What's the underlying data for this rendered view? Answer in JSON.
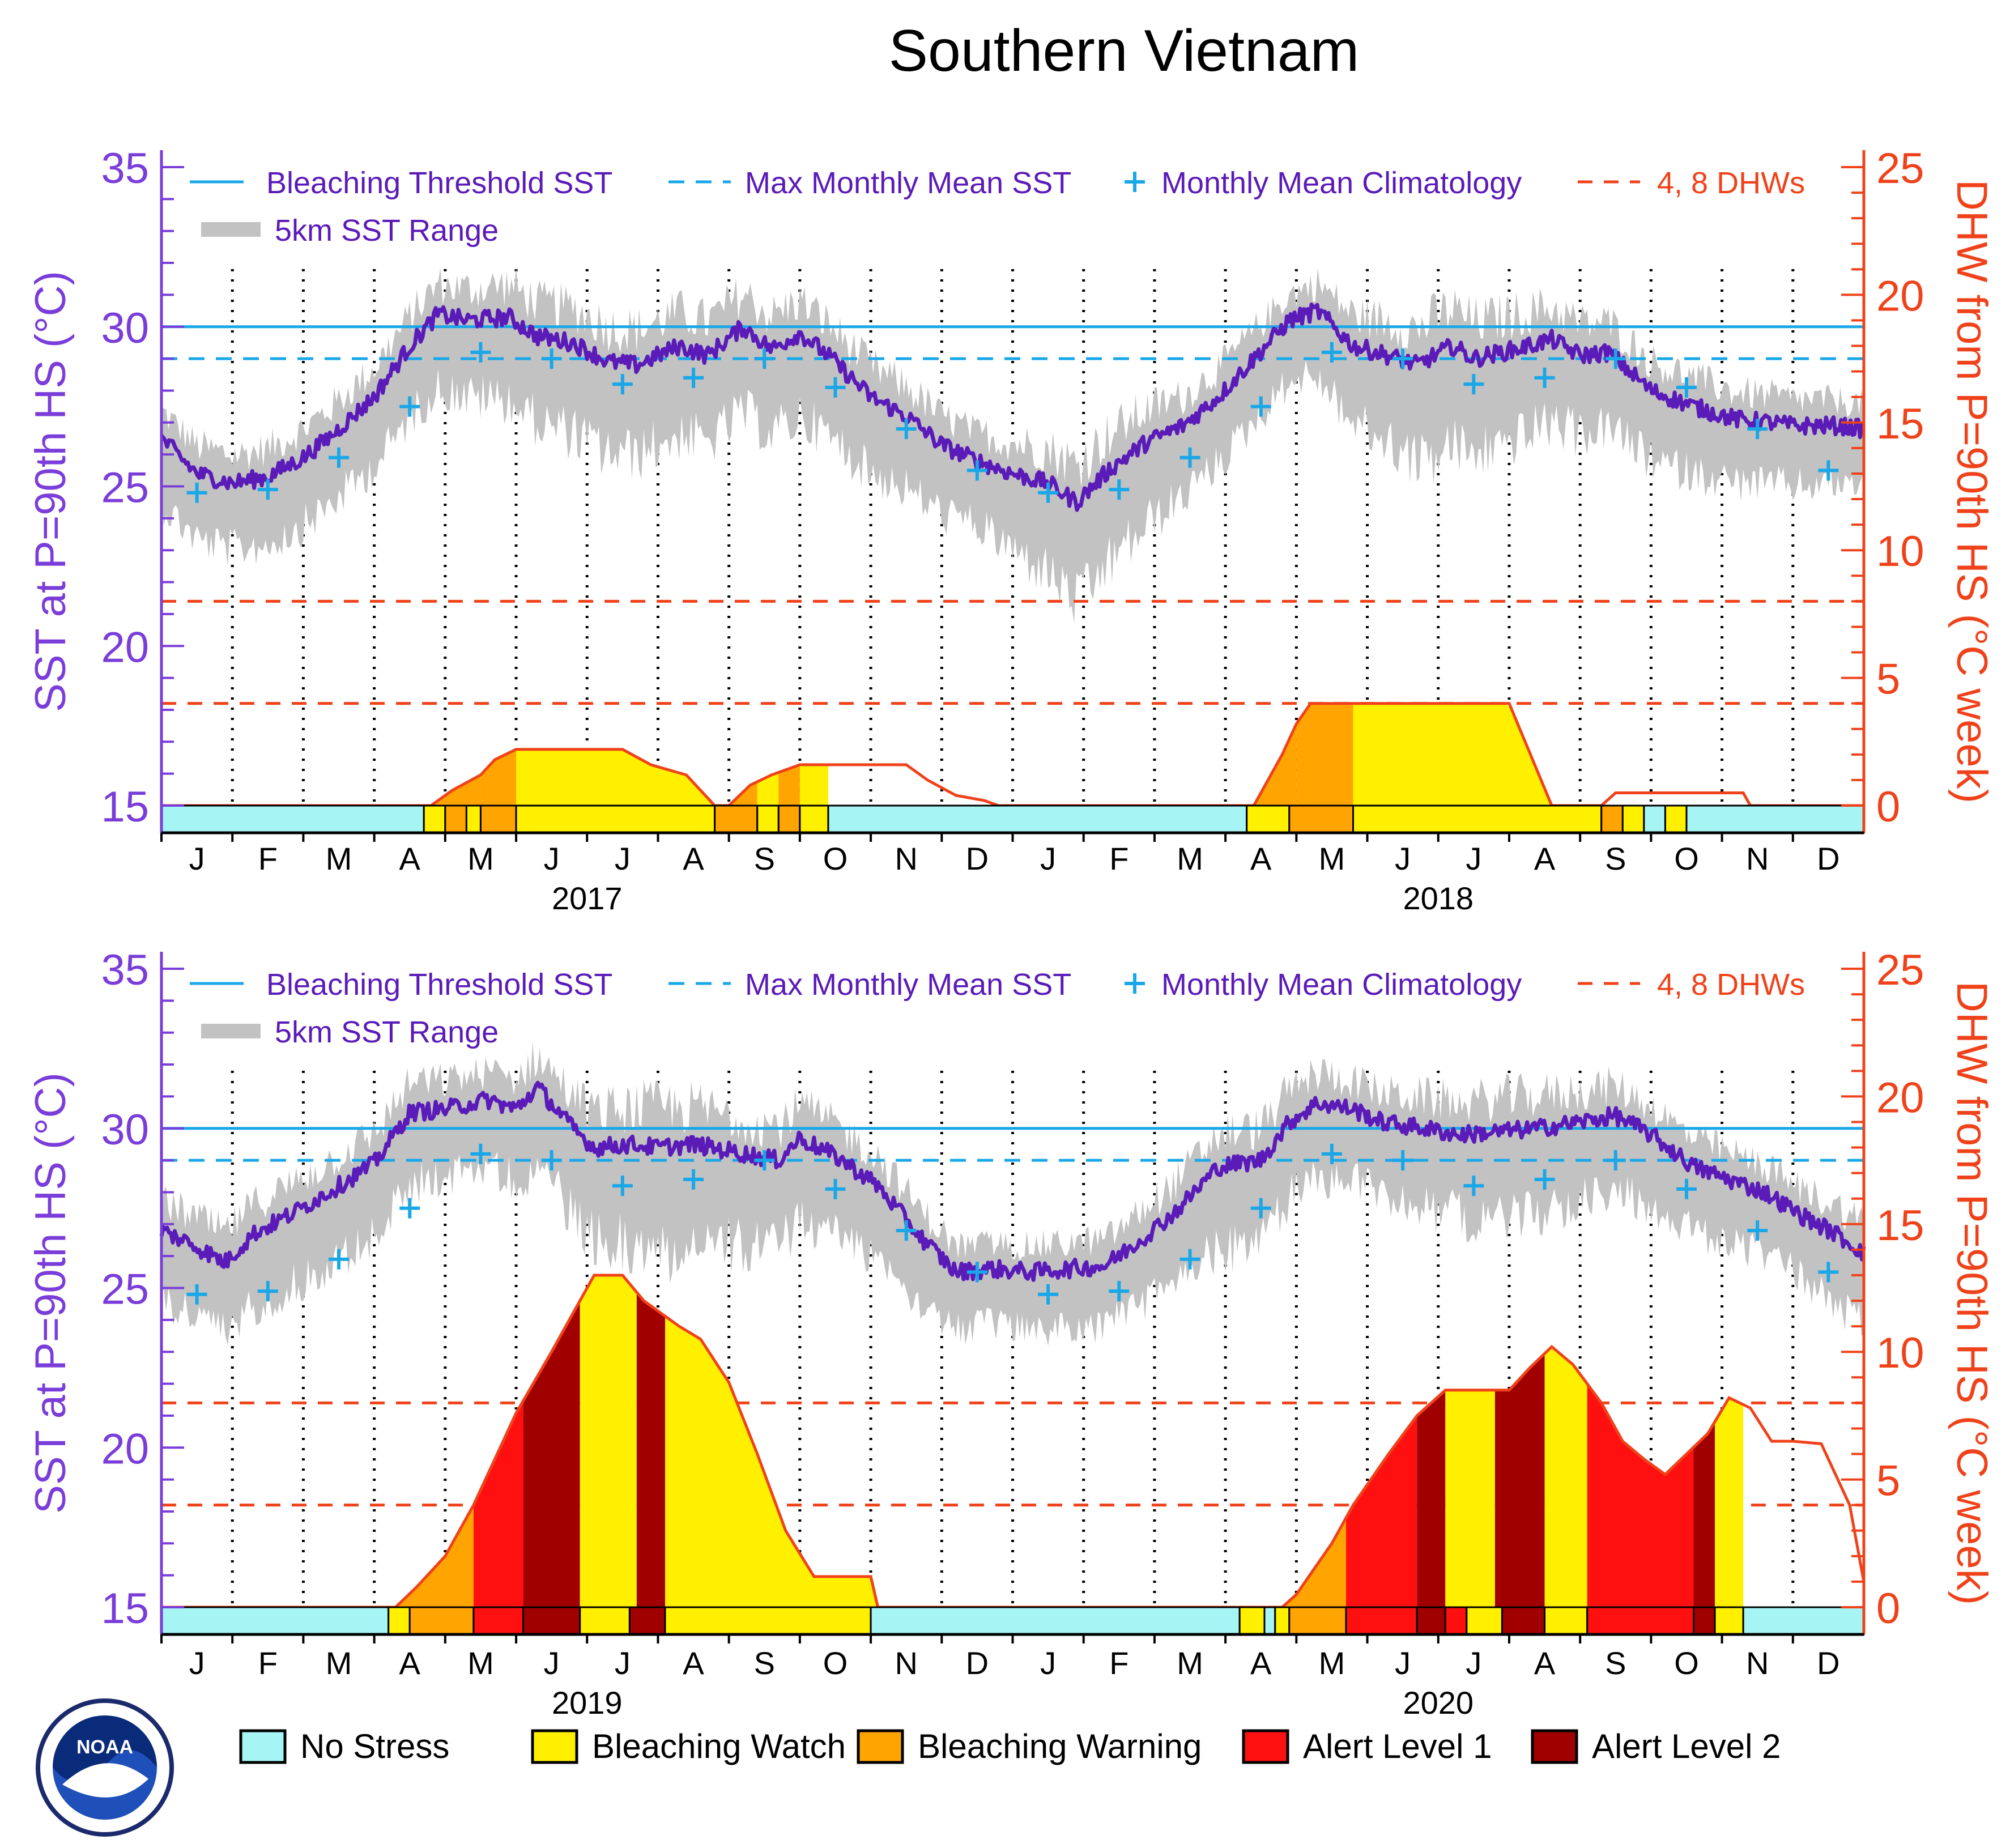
{
  "title": "Southern Vietnam",
  "colors": {
    "sst": "#5a1bb8",
    "range": "#c2c2c2",
    "threshold": "#1aa7e8",
    "climatology": "#1aa7e8",
    "dhw": "#f0421a",
    "axis_left": "#7a3dd9",
    "axis_right": "#f0421a",
    "no_stress": "#a6f4f4",
    "watch": "#fff000",
    "warning": "#ffa400",
    "alert1": "#ff1010",
    "alert2": "#a00000"
  },
  "logo": {
    "text": "NOAA"
  },
  "legend": {
    "threshold_label": "Bleaching Threshold SST",
    "mmm_label": "Max Monthly Mean SST",
    "clim_label": "Monthly Mean Climatology",
    "dhw_label": "4, 8 DHWs",
    "range_label": "5km SST Range"
  },
  "bottom_legend": [
    {
      "label": "No Stress",
      "color_key": "no_stress"
    },
    {
      "label": "Bleaching Watch",
      "color_key": "watch"
    },
    {
      "label": "Bleaching Warning",
      "color_key": "warning"
    },
    {
      "label": "Alert Level 1",
      "color_key": "alert1"
    },
    {
      "label": "Alert Level 2",
      "color_key": "alert2"
    }
  ],
  "chart_data": [
    {
      "type": "line",
      "title": "Southern Vietnam",
      "years": [
        "2017",
        "2018"
      ],
      "months": [
        "J",
        "F",
        "M",
        "A",
        "M",
        "J",
        "J",
        "A",
        "S",
        "O",
        "N",
        "D",
        "J",
        "F",
        "M",
        "A",
        "M",
        "J",
        "J",
        "A",
        "S",
        "O",
        "N",
        "D"
      ],
      "ylabel": "SST at P=90th HS (°C)",
      "ylabel_right": "DHW from P=90th HS (°C week)",
      "ylim": [
        15,
        35
      ],
      "yticks": [
        "15",
        "20",
        "25",
        "30",
        "35"
      ],
      "ylim_right": [
        0,
        25
      ],
      "yticks_right": [
        "0",
        "5",
        "10",
        "15",
        "20",
        "25"
      ],
      "threshold": 30.0,
      "mmm": 29.0,
      "dhw_lines": [
        4,
        8
      ],
      "climatology": [
        24.8,
        24.9,
        25.9,
        27.5,
        29.2,
        29.0,
        28.2,
        28.4,
        29.0,
        28.1,
        26.8,
        25.5,
        24.8,
        24.9,
        25.9,
        27.5,
        29.2,
        29.0,
        28.2,
        28.4,
        29.0,
        28.1,
        26.8,
        25.5
      ],
      "sst_keys": [
        [
          0.0,
          26.5
        ],
        [
          0.5,
          25.4
        ],
        [
          1.0,
          25.1
        ],
        [
          1.5,
          25.3
        ],
        [
          2.0,
          25.9
        ],
        [
          2.4,
          26.6
        ],
        [
          3.0,
          27.8
        ],
        [
          3.5,
          29.4
        ],
        [
          3.9,
          30.4
        ],
        [
          4.3,
          30.2
        ],
        [
          4.9,
          30.3
        ],
        [
          5.3,
          29.7
        ],
        [
          5.8,
          29.5
        ],
        [
          6.3,
          28.9
        ],
        [
          6.7,
          28.8
        ],
        [
          7.3,
          29.4
        ],
        [
          7.7,
          29.1
        ],
        [
          8.2,
          30.0
        ],
        [
          8.6,
          29.3
        ],
        [
          9.0,
          29.8
        ],
        [
          9.4,
          29.1
        ],
        [
          10.0,
          27.8
        ],
        [
          10.5,
          27.2
        ],
        [
          11.0,
          26.3
        ],
        [
          11.5,
          25.8
        ],
        [
          12.0,
          25.4
        ],
        [
          12.5,
          25.1
        ],
        [
          12.9,
          24.5
        ],
        [
          13.4,
          25.6
        ],
        [
          13.9,
          26.4
        ],
        [
          14.4,
          26.9
        ],
        [
          14.9,
          27.8
        ],
        [
          15.4,
          29.0
        ],
        [
          15.9,
          30.2
        ],
        [
          16.3,
          30.5
        ],
        [
          16.8,
          29.4
        ],
        [
          17.3,
          29.1
        ],
        [
          17.7,
          28.8
        ],
        [
          18.2,
          29.4
        ],
        [
          18.5,
          29.0
        ],
        [
          19.1,
          29.3
        ],
        [
          19.6,
          29.6
        ],
        [
          20.0,
          29.1
        ],
        [
          20.4,
          29.2
        ],
        [
          21.0,
          28.0
        ],
        [
          21.6,
          27.5
        ],
        [
          22.2,
          27.1
        ],
        [
          22.7,
          27.0
        ],
        [
          23.0,
          26.9
        ],
        [
          23.6,
          26.9
        ],
        [
          24.0,
          26.8
        ]
      ],
      "range_amplitude": [
        [
          0.0,
          1.4
        ],
        [
          3.0,
          1.5
        ],
        [
          4.0,
          1.6
        ],
        [
          6.0,
          2.0
        ],
        [
          9.0,
          1.8
        ],
        [
          11.5,
          1.4
        ],
        [
          13.0,
          2.2
        ],
        [
          14.5,
          1.5
        ],
        [
          16.0,
          1.3
        ],
        [
          18.0,
          2.2
        ],
        [
          20.5,
          1.6
        ],
        [
          22.0,
          1.4
        ],
        [
          24.0,
          1.2
        ]
      ],
      "dhw": [
        [
          0.0,
          0
        ],
        [
          3.8,
          0
        ],
        [
          4.1,
          0.6
        ],
        [
          4.5,
          1.2
        ],
        [
          4.7,
          1.8
        ],
        [
          5.0,
          2.2
        ],
        [
          6.5,
          2.2
        ],
        [
          6.9,
          1.6
        ],
        [
          7.4,
          1.2
        ],
        [
          7.8,
          0
        ],
        [
          8.0,
          0
        ],
        [
          8.3,
          0.8
        ],
        [
          8.6,
          1.2
        ],
        [
          9.0,
          1.6
        ],
        [
          10.5,
          1.6
        ],
        [
          10.8,
          1.0
        ],
        [
          11.2,
          0.4
        ],
        [
          11.6,
          0.2
        ],
        [
          11.8,
          0
        ],
        [
          14.0,
          0
        ],
        [
          15.4,
          0
        ],
        [
          15.8,
          2.0
        ],
        [
          16.0,
          3.2
        ],
        [
          16.2,
          4.0
        ],
        [
          19.0,
          4.0
        ],
        [
          19.6,
          0
        ],
        [
          20.3,
          0
        ],
        [
          20.5,
          0.5
        ],
        [
          22.3,
          0.5
        ],
        [
          22.4,
          0
        ],
        [
          24.0,
          0
        ]
      ],
      "alert_bar": [
        [
          0,
          3.7,
          "no_stress"
        ],
        [
          3.7,
          4.0,
          "watch"
        ],
        [
          4.0,
          4.3,
          "warning"
        ],
        [
          4.3,
          4.5,
          "watch"
        ],
        [
          4.5,
          5.0,
          "warning"
        ],
        [
          5.0,
          7.8,
          "watch"
        ],
        [
          7.8,
          8.4,
          "warning"
        ],
        [
          8.4,
          8.7,
          "watch"
        ],
        [
          8.7,
          9.0,
          "warning"
        ],
        [
          9.0,
          9.4,
          "watch"
        ],
        [
          9.4,
          15.3,
          "no_stress"
        ],
        [
          15.3,
          15.9,
          "watch"
        ],
        [
          15.9,
          16.8,
          "warning"
        ],
        [
          16.8,
          20.3,
          "watch"
        ],
        [
          20.3,
          20.6,
          "warning"
        ],
        [
          20.6,
          20.9,
          "watch"
        ],
        [
          20.9,
          21.2,
          "no_stress"
        ],
        [
          21.2,
          21.5,
          "watch"
        ],
        [
          21.5,
          24.0,
          "no_stress"
        ]
      ],
      "dhw_fill": [
        [
          3.8,
          4.5,
          "warning"
        ],
        [
          4.5,
          5.0,
          "warning"
        ],
        [
          5.0,
          7.8,
          "watch"
        ],
        [
          8.0,
          8.4,
          "warning"
        ],
        [
          8.4,
          8.7,
          "watch"
        ],
        [
          8.7,
          9.0,
          "warning"
        ],
        [
          9.0,
          9.4,
          "watch"
        ],
        [
          15.4,
          16.0,
          "warning"
        ],
        [
          16.0,
          16.8,
          "warning"
        ],
        [
          16.8,
          19.6,
          "watch"
        ]
      ]
    },
    {
      "type": "line",
      "title": "Southern Vietnam",
      "years": [
        "2019",
        "2020"
      ],
      "months": [
        "J",
        "F",
        "M",
        "A",
        "M",
        "J",
        "J",
        "A",
        "S",
        "O",
        "N",
        "D",
        "J",
        "F",
        "M",
        "A",
        "M",
        "J",
        "J",
        "A",
        "S",
        "O",
        "N",
        "D"
      ],
      "ylabel": "SST at P=90th HS (°C)",
      "ylabel_right": "DHW from P=90th HS (°C week)",
      "ylim": [
        15,
        35
      ],
      "yticks": [
        "15",
        "20",
        "25",
        "30",
        "35"
      ],
      "ylim_right": [
        0,
        25
      ],
      "yticks_right": [
        "0",
        "5",
        "10",
        "15",
        "20",
        "25"
      ],
      "threshold": 30.0,
      "mmm": 29.0,
      "dhw_lines": [
        4,
        8
      ],
      "climatology": [
        24.8,
        24.9,
        25.9,
        27.5,
        29.2,
        29.0,
        28.2,
        28.4,
        29.0,
        28.1,
        26.8,
        25.5,
        24.8,
        24.9,
        25.9,
        27.5,
        29.2,
        29.0,
        28.2,
        28.4,
        29.0,
        28.1,
        26.8,
        25.5
      ],
      "sst_keys": [
        [
          0.0,
          26.8
        ],
        [
          0.4,
          26.4
        ],
        [
          0.9,
          25.8
        ],
        [
          1.3,
          26.7
        ],
        [
          1.9,
          27.4
        ],
        [
          2.5,
          28.2
        ],
        [
          3.0,
          28.9
        ],
        [
          3.5,
          30.5
        ],
        [
          4.0,
          30.6
        ],
        [
          4.6,
          30.9
        ],
        [
          5.0,
          30.6
        ],
        [
          5.3,
          31.3
        ],
        [
          5.8,
          30.0
        ],
        [
          6.1,
          29.4
        ],
        [
          6.6,
          29.5
        ],
        [
          7.0,
          29.4
        ],
        [
          7.5,
          29.5
        ],
        [
          8.0,
          29.3
        ],
        [
          8.7,
          29.0
        ],
        [
          9.0,
          29.7
        ],
        [
          9.6,
          29.0
        ],
        [
          10.1,
          28.2
        ],
        [
          10.7,
          26.6
        ],
        [
          11.2,
          25.5
        ],
        [
          11.7,
          25.6
        ],
        [
          12.3,
          25.5
        ],
        [
          12.8,
          25.6
        ],
        [
          13.3,
          25.7
        ],
        [
          13.8,
          26.5
        ],
        [
          14.3,
          27.4
        ],
        [
          14.9,
          28.8
        ],
        [
          15.5,
          29.0
        ],
        [
          15.9,
          30.2
        ],
        [
          16.3,
          30.8
        ],
        [
          16.8,
          30.6
        ],
        [
          17.2,
          30.2
        ],
        [
          17.8,
          30.0
        ],
        [
          18.3,
          29.8
        ],
        [
          18.9,
          29.9
        ],
        [
          19.4,
          30.0
        ],
        [
          20.0,
          30.2
        ],
        [
          20.5,
          30.4
        ],
        [
          21.0,
          29.8
        ],
        [
          21.6,
          28.8
        ],
        [
          22.1,
          28.4
        ],
        [
          22.6,
          28.0
        ],
        [
          23.1,
          27.3
        ],
        [
          23.6,
          26.7
        ],
        [
          24.0,
          26.1
        ]
      ],
      "range_amplitude": [
        [
          0.0,
          1.5
        ],
        [
          3.0,
          1.6
        ],
        [
          4.5,
          1.4
        ],
        [
          7.0,
          2.3
        ],
        [
          9.0,
          1.8
        ],
        [
          11.5,
          1.2
        ],
        [
          13.5,
          1.3
        ],
        [
          15.0,
          1.8
        ],
        [
          17.0,
          1.5
        ],
        [
          19.0,
          1.9
        ],
        [
          21.0,
          1.5
        ],
        [
          23.0,
          1.3
        ],
        [
          24.0,
          1.6
        ]
      ],
      "dhw": [
        [
          0.0,
          0
        ],
        [
          3.3,
          0
        ],
        [
          3.6,
          0.8
        ],
        [
          4.0,
          2.0
        ],
        [
          4.4,
          4.0
        ],
        [
          4.7,
          5.8
        ],
        [
          5.0,
          7.6
        ],
        [
          5.5,
          10.0
        ],
        [
          5.9,
          12.0
        ],
        [
          6.1,
          13.0
        ],
        [
          6.5,
          13.0
        ],
        [
          6.8,
          12.0
        ],
        [
          7.0,
          11.6
        ],
        [
          7.3,
          11.0
        ],
        [
          7.6,
          10.5
        ],
        [
          8.0,
          8.8
        ],
        [
          8.4,
          6.0
        ],
        [
          8.8,
          3.0
        ],
        [
          9.2,
          1.2
        ],
        [
          10.0,
          1.2
        ],
        [
          10.1,
          0
        ],
        [
          15.8,
          0
        ],
        [
          16.0,
          0.5
        ],
        [
          16.5,
          2.5
        ],
        [
          16.8,
          4.0
        ],
        [
          17.3,
          6.0
        ],
        [
          17.7,
          7.5
        ],
        [
          18.1,
          8.5
        ],
        [
          19.0,
          8.5
        ],
        [
          19.3,
          9.4
        ],
        [
          19.6,
          10.2
        ],
        [
          19.9,
          9.5
        ],
        [
          20.3,
          8.0
        ],
        [
          20.6,
          6.5
        ],
        [
          20.9,
          5.8
        ],
        [
          21.2,
          5.2
        ],
        [
          21.5,
          6.0
        ],
        [
          21.8,
          6.8
        ],
        [
          22.1,
          8.2
        ],
        [
          22.4,
          7.8
        ],
        [
          22.7,
          6.5
        ],
        [
          23.0,
          6.5
        ],
        [
          23.4,
          6.4
        ],
        [
          23.8,
          4.0
        ],
        [
          24.0,
          1.0
        ]
      ],
      "alert_bar": [
        [
          0,
          3.2,
          "no_stress"
        ],
        [
          3.2,
          3.5,
          "watch"
        ],
        [
          3.5,
          4.4,
          "warning"
        ],
        [
          4.4,
          5.1,
          "alert1"
        ],
        [
          5.1,
          5.9,
          "alert2"
        ],
        [
          5.9,
          6.6,
          "watch"
        ],
        [
          6.6,
          7.1,
          "alert2"
        ],
        [
          7.1,
          10.0,
          "watch"
        ],
        [
          10.0,
          15.2,
          "no_stress"
        ],
        [
          15.2,
          15.55,
          "watch"
        ],
        [
          15.55,
          15.7,
          "no_stress"
        ],
        [
          15.7,
          15.9,
          "watch"
        ],
        [
          15.9,
          16.7,
          "warning"
        ],
        [
          16.7,
          17.7,
          "alert1"
        ],
        [
          17.7,
          18.1,
          "alert2"
        ],
        [
          18.1,
          18.4,
          "alert1"
        ],
        [
          18.4,
          18.9,
          "watch"
        ],
        [
          18.9,
          19.5,
          "alert2"
        ],
        [
          19.5,
          20.1,
          "watch"
        ],
        [
          20.1,
          21.6,
          "alert1"
        ],
        [
          21.6,
          21.9,
          "alert2"
        ],
        [
          21.9,
          22.3,
          "watch"
        ],
        [
          22.3,
          24.0,
          "no_stress"
        ]
      ],
      "dhw_fill": [
        [
          3.3,
          4.4,
          "warning"
        ],
        [
          4.4,
          5.1,
          "alert1"
        ],
        [
          5.1,
          5.9,
          "alert2"
        ],
        [
          5.9,
          6.7,
          "watch"
        ],
        [
          6.7,
          7.1,
          "alert2"
        ],
        [
          7.1,
          10.1,
          "watch"
        ],
        [
          15.8,
          16.7,
          "warning"
        ],
        [
          16.7,
          17.7,
          "alert1"
        ],
        [
          17.7,
          18.1,
          "alert2"
        ],
        [
          18.1,
          18.8,
          "watch"
        ],
        [
          18.8,
          19.5,
          "alert2"
        ],
        [
          19.5,
          20.1,
          "watch"
        ],
        [
          20.1,
          21.6,
          "alert1"
        ],
        [
          21.6,
          21.9,
          "alert2"
        ],
        [
          21.9,
          22.3,
          "watch"
        ]
      ]
    }
  ]
}
